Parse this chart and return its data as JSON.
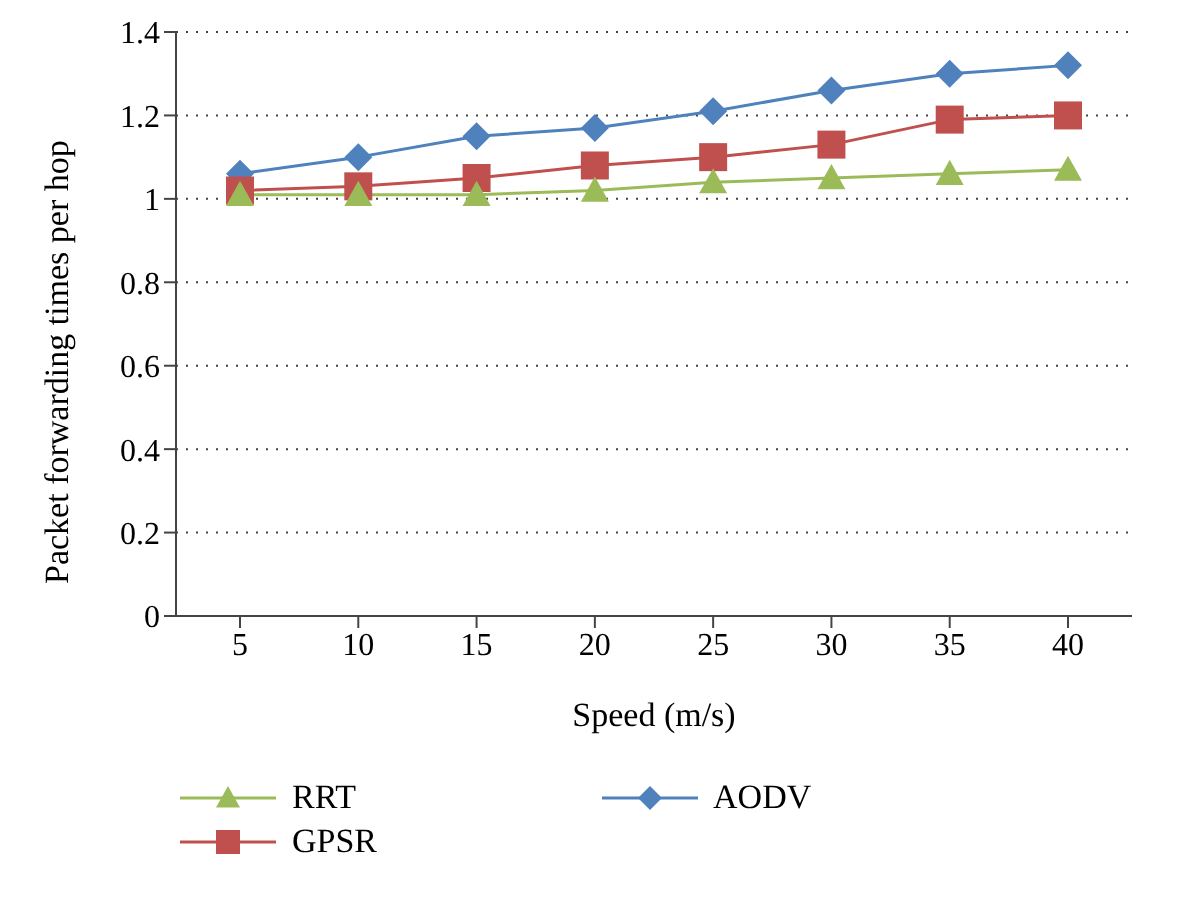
{
  "chart_data": {
    "type": "line",
    "xlabel": "Speed (m/s)",
    "ylabel": "Packet forwarding times per hop",
    "categories": [
      "5",
      "10",
      "15",
      "20",
      "25",
      "30",
      "35",
      "40"
    ],
    "series": [
      {
        "name": "RRT",
        "color": "#9bbb59",
        "marker": "triangle",
        "values": [
          1.01,
          1.01,
          1.01,
          1.02,
          1.04,
          1.05,
          1.06,
          1.07
        ]
      },
      {
        "name": "GPSR",
        "color": "#c0504d",
        "marker": "square",
        "values": [
          1.02,
          1.03,
          1.05,
          1.08,
          1.1,
          1.13,
          1.19,
          1.2
        ]
      },
      {
        "name": "AODV",
        "color": "#4f81bd",
        "marker": "diamond",
        "values": [
          1.06,
          1.1,
          1.15,
          1.17,
          1.21,
          1.26,
          1.3,
          1.32
        ]
      }
    ],
    "ylim": [
      0,
      1.4
    ],
    "yticks": [
      0,
      0.2,
      0.4,
      0.6,
      0.8,
      1,
      1.2,
      1.4
    ],
    "grid": "y",
    "legend": "bottom",
    "line_style": "solid"
  }
}
